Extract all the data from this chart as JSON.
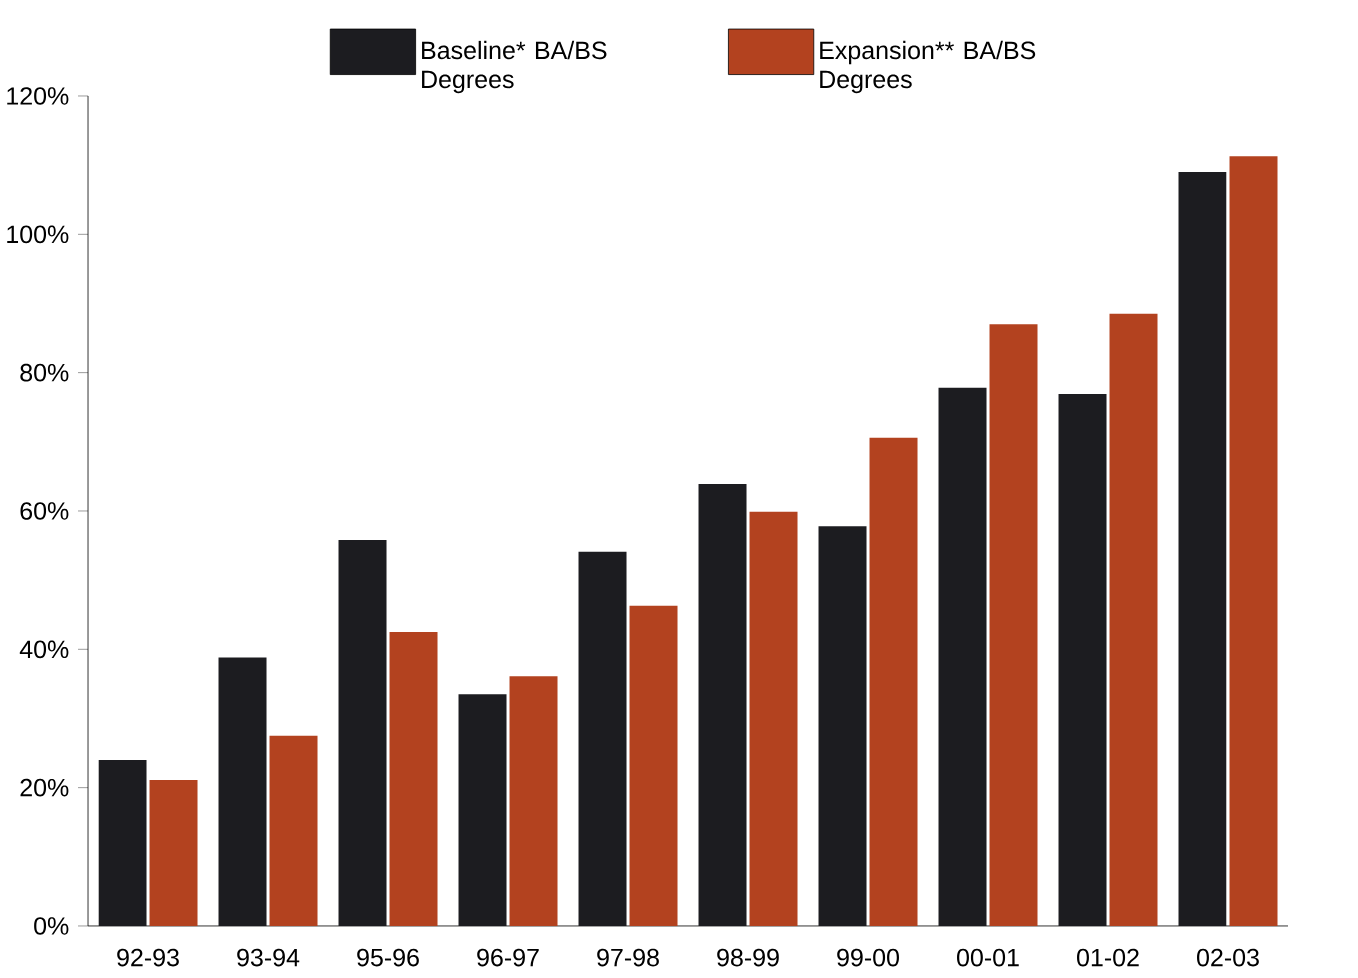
{
  "chart_data": {
    "type": "bar",
    "categories": [
      "92-93",
      "93-94",
      "95-96",
      "96-97",
      "97-98",
      "98-99",
      "99-00",
      "00-01",
      "01-02",
      "02-03"
    ],
    "series": [
      {
        "name": "Baseline* BA/BS Degrees",
        "color": "#1c1c20",
        "values": [
          24,
          38.8,
          55.8,
          33.5,
          54.1,
          63.9,
          57.8,
          77.8,
          76.9,
          109
        ]
      },
      {
        "name": "Expansion** BA/BS Degrees",
        "color": "#b3421f",
        "values": [
          21.1,
          27.5,
          42.5,
          36.1,
          46.3,
          59.9,
          70.6,
          87,
          88.5,
          111.3
        ]
      }
    ],
    "ylim": [
      0,
      120
    ],
    "yticks": [
      {
        "value": 0,
        "label": "0%"
      },
      {
        "value": 20,
        "label": "20%"
      },
      {
        "value": 40,
        "label": "40%"
      },
      {
        "value": 60,
        "label": "60%"
      },
      {
        "value": 80,
        "label": "80%"
      },
      {
        "value": 100,
        "label": "100%"
      },
      {
        "value": 120,
        "label": "120%"
      }
    ],
    "grid": false,
    "legend": "top"
  }
}
